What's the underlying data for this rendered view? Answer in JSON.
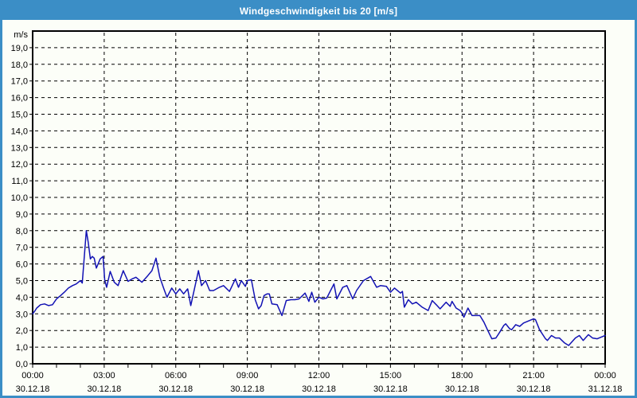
{
  "window": {
    "title": "Windgeschwindigkeit bis 20 [m/s]"
  },
  "colors": {
    "titlebar_bg": "#3b8ec6",
    "frame_border": "#3b8ec6",
    "page_bg": "#fcfef8",
    "title_text": "#ffffff",
    "axis_and_grid": "#000000",
    "line": "#1212b4"
  },
  "chart_data": {
    "type": "line",
    "title": "Windgeschwindigkeit bis 20 [m/s]",
    "ylabel": "m/s",
    "xlabel": "",
    "ylim": [
      0,
      20
    ],
    "xlim_hours": [
      0,
      24
    ],
    "grid": "dashed, horizontal every 1.0 m/s, vertical every 3 h",
    "legend": "none",
    "y_tick_labels": [
      "0,0",
      "1,0",
      "2,0",
      "3,0",
      "4,0",
      "5,0",
      "6,0",
      "7,0",
      "8,0",
      "9,0",
      "10,0",
      "11,0",
      "12,0",
      "13,0",
      "14,0",
      "15,0",
      "16,0",
      "17,0",
      "18,0",
      "19,0"
    ],
    "x_ticks": [
      {
        "hour": 0,
        "time": "00:00",
        "date": "30.12.18"
      },
      {
        "hour": 3,
        "time": "03:00",
        "date": "30.12.18"
      },
      {
        "hour": 6,
        "time": "06:00",
        "date": "30.12.18"
      },
      {
        "hour": 9,
        "time": "09:00",
        "date": "30.12.18"
      },
      {
        "hour": 12,
        "time": "12:00",
        "date": "30.12.18"
      },
      {
        "hour": 15,
        "time": "15:00",
        "date": "30.12.18"
      },
      {
        "hour": 18,
        "time": "18:00",
        "date": "30.12.18"
      },
      {
        "hour": 21,
        "time": "21:00",
        "date": "30.12.18"
      },
      {
        "hour": 24,
        "time": "00:00",
        "date": "31.12.18"
      }
    ],
    "minor_x_tick_every_hours": 1,
    "series": [
      {
        "name": "Windgeschwindigkeit",
        "unit": "m/s",
        "points_hour_value": [
          [
            0,
            3.0
          ],
          [
            0.08,
            3.15
          ],
          [
            0.17,
            3.35
          ],
          [
            0.33,
            3.55
          ],
          [
            0.5,
            3.6
          ],
          [
            0.67,
            3.5
          ],
          [
            0.83,
            3.55
          ],
          [
            1,
            3.9
          ],
          [
            1.17,
            4.1
          ],
          [
            1.33,
            4.3
          ],
          [
            1.5,
            4.55
          ],
          [
            1.67,
            4.7
          ],
          [
            1.83,
            4.8
          ],
          [
            2,
            5.0
          ],
          [
            2.08,
            4.85
          ],
          [
            2.25,
            8.0
          ],
          [
            2.33,
            7.3
          ],
          [
            2.42,
            6.3
          ],
          [
            2.5,
            6.45
          ],
          [
            2.58,
            6.35
          ],
          [
            2.67,
            5.75
          ],
          [
            2.83,
            6.3
          ],
          [
            2.95,
            6.45
          ],
          [
            3.02,
            5.05
          ],
          [
            3.1,
            4.6
          ],
          [
            3.25,
            5.55
          ],
          [
            3.42,
            4.9
          ],
          [
            3.58,
            4.7
          ],
          [
            3.8,
            5.6
          ],
          [
            4,
            4.95
          ],
          [
            4.17,
            5.1
          ],
          [
            4.33,
            5.2
          ],
          [
            4.58,
            4.9
          ],
          [
            4.83,
            5.3
          ],
          [
            5,
            5.6
          ],
          [
            5.17,
            6.35
          ],
          [
            5.33,
            5.2
          ],
          [
            5.5,
            4.5
          ],
          [
            5.63,
            4.0
          ],
          [
            5.83,
            4.55
          ],
          [
            6,
            4.2
          ],
          [
            6.17,
            4.5
          ],
          [
            6.33,
            4.2
          ],
          [
            6.5,
            4.5
          ],
          [
            6.63,
            3.5
          ],
          [
            6.95,
            5.6
          ],
          [
            7.08,
            4.7
          ],
          [
            7.25,
            5.0
          ],
          [
            7.42,
            4.4
          ],
          [
            7.58,
            4.4
          ],
          [
            7.83,
            4.6
          ],
          [
            8,
            4.7
          ],
          [
            8.25,
            4.35
          ],
          [
            8.5,
            5.1
          ],
          [
            8.63,
            4.6
          ],
          [
            8.75,
            5.0
          ],
          [
            8.92,
            4.65
          ],
          [
            9,
            5.0
          ],
          [
            9.17,
            5.05
          ],
          [
            9.33,
            3.85
          ],
          [
            9.47,
            3.3
          ],
          [
            9.58,
            3.5
          ],
          [
            9.7,
            4.1
          ],
          [
            9.83,
            4.2
          ],
          [
            9.92,
            4.2
          ],
          [
            10.03,
            3.6
          ],
          [
            10.25,
            3.55
          ],
          [
            10.45,
            2.9
          ],
          [
            10.63,
            3.8
          ],
          [
            10.83,
            3.85
          ],
          [
            11,
            3.85
          ],
          [
            11.17,
            3.9
          ],
          [
            11.42,
            4.25
          ],
          [
            11.58,
            3.75
          ],
          [
            11.7,
            4.3
          ],
          [
            11.83,
            3.7
          ],
          [
            12,
            4.0
          ],
          [
            12.17,
            3.9
          ],
          [
            12.33,
            3.95
          ],
          [
            12.63,
            4.8
          ],
          [
            12.75,
            3.9
          ],
          [
            13,
            4.6
          ],
          [
            13.17,
            4.7
          ],
          [
            13.42,
            3.9
          ],
          [
            13.58,
            4.4
          ],
          [
            13.87,
            5.0
          ],
          [
            14.17,
            5.25
          ],
          [
            14.42,
            4.6
          ],
          [
            14.58,
            4.7
          ],
          [
            14.83,
            4.65
          ],
          [
            15,
            4.3
          ],
          [
            15.17,
            4.55
          ],
          [
            15.42,
            4.25
          ],
          [
            15.5,
            4.35
          ],
          [
            15.58,
            3.4
          ],
          [
            15.75,
            3.85
          ],
          [
            15.92,
            3.6
          ],
          [
            16.08,
            3.7
          ],
          [
            16.33,
            3.4
          ],
          [
            16.58,
            3.2
          ],
          [
            16.75,
            3.8
          ],
          [
            16.92,
            3.55
          ],
          [
            17.08,
            3.3
          ],
          [
            17.33,
            3.7
          ],
          [
            17.5,
            3.45
          ],
          [
            17.58,
            3.75
          ],
          [
            17.75,
            3.35
          ],
          [
            17.92,
            3.2
          ],
          [
            18,
            3.05
          ],
          [
            18.08,
            2.8
          ],
          [
            18.25,
            3.35
          ],
          [
            18.42,
            2.9
          ],
          [
            18.58,
            2.9
          ],
          [
            18.75,
            2.9
          ],
          [
            18.92,
            2.5
          ],
          [
            19.08,
            2.0
          ],
          [
            19.25,
            1.5
          ],
          [
            19.42,
            1.55
          ],
          [
            19.58,
            1.9
          ],
          [
            19.75,
            2.3
          ],
          [
            19.83,
            2.4
          ],
          [
            20,
            2.1
          ],
          [
            20.08,
            2.05
          ],
          [
            20.25,
            2.35
          ],
          [
            20.42,
            2.25
          ],
          [
            20.58,
            2.45
          ],
          [
            20.83,
            2.6
          ],
          [
            21,
            2.7
          ],
          [
            21.08,
            2.65
          ],
          [
            21.25,
            2.05
          ],
          [
            21.5,
            1.5
          ],
          [
            21.58,
            1.4
          ],
          [
            21.75,
            1.7
          ],
          [
            21.92,
            1.55
          ],
          [
            22.08,
            1.55
          ],
          [
            22.3,
            1.25
          ],
          [
            22.47,
            1.1
          ],
          [
            22.75,
            1.55
          ],
          [
            22.92,
            1.7
          ],
          [
            23.08,
            1.4
          ],
          [
            23.3,
            1.75
          ],
          [
            23.47,
            1.55
          ],
          [
            23.67,
            1.5
          ],
          [
            23.83,
            1.6
          ],
          [
            24,
            1.7
          ]
        ]
      }
    ]
  }
}
